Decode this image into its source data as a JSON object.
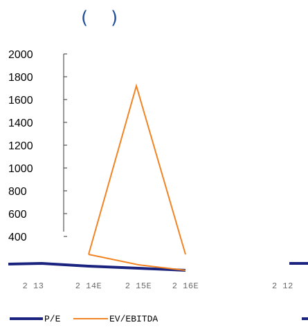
{
  "header": {
    "left_paren": "(",
    "right_paren": ")"
  },
  "chart_data": {
    "type": "line",
    "categories": [
      "2 13",
      "2 14E",
      "2 15E",
      "2 16E"
    ],
    "ylim": [
      0,
      2000
    ],
    "yticks": [
      "2000",
      "1800",
      "1600",
      "1400",
      "1200",
      "1000",
      "800",
      "600",
      "400"
    ],
    "series": [
      {
        "name": "P/E",
        "color": "#1a237e",
        "values": [
          18,
          14,
          12,
          11
        ]
      },
      {
        "name": "EV/EBITDA",
        "color": "#f28322",
        "values": [
          110,
          1720,
          40,
          10
        ]
      }
    ],
    "second_panel": {
      "first_tick": "2 12"
    },
    "grid": false,
    "legend_position": "bottom"
  }
}
